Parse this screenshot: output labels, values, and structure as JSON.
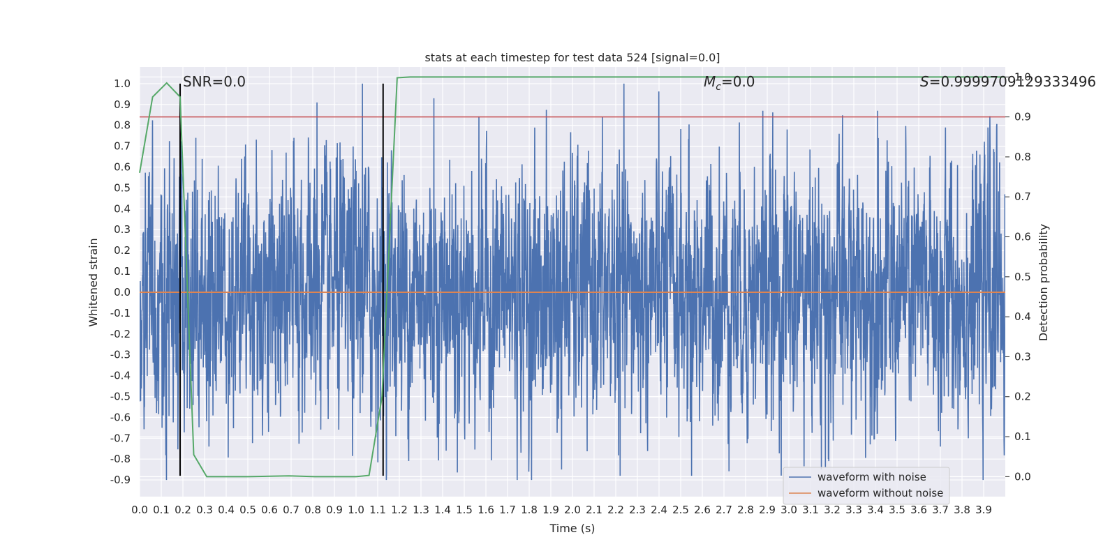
{
  "chart_data": {
    "type": "line",
    "title": "stats at each timestep for test data 524 [signal=0.0]",
    "xlabel": "Time (s)",
    "ylabel": "Whitened strain",
    "y2label": "Detection probability",
    "xlim": [
      0.0,
      4.0
    ],
    "ylim": [
      -0.98,
      1.08
    ],
    "y2lim": [
      -0.05,
      1.025
    ],
    "grid": true,
    "x_ticks": [
      "0.0",
      "0.1",
      "0.2",
      "0.3",
      "0.4",
      "0.5",
      "0.6",
      "0.7",
      "0.8",
      "0.9",
      "1.0",
      "1.1",
      "1.2",
      "1.3",
      "1.4",
      "1.5",
      "1.6",
      "1.7",
      "1.8",
      "1.9",
      "2.0",
      "2.1",
      "2.2",
      "2.3",
      "2.4",
      "2.5",
      "2.6",
      "2.7",
      "2.8",
      "2.9",
      "3.0",
      "3.1",
      "3.2",
      "3.3",
      "3.4",
      "3.5",
      "3.6",
      "3.7",
      "3.8",
      "3.9"
    ],
    "y_ticks": [
      "1.0",
      "0.9",
      "0.8",
      "0.7",
      "0.6",
      "0.5",
      "0.4",
      "0.3",
      "0.2",
      "0.1",
      "0.0",
      "-0.1",
      "-0.2",
      "-0.3",
      "-0.4",
      "-0.5",
      "-0.6",
      "-0.7",
      "-0.8",
      "-0.9"
    ],
    "y2_ticks": [
      "1.0",
      "0.9",
      "0.8",
      "0.7",
      "0.6",
      "0.5",
      "0.4",
      "0.3",
      "0.2",
      "0.1",
      "0.0"
    ],
    "annotations": {
      "snr": "SNR=0.0",
      "mc_symbol": "M",
      "mc_subscript": "c",
      "mc_value": "=0.0",
      "s_symbol": "S",
      "s_value": "=0.9999709129333496"
    },
    "legend": {
      "position": "lower-right",
      "entries": [
        "waveform with noise",
        "waveform without noise"
      ]
    },
    "colors": {
      "noise": "#4c72b0",
      "clean": "#dd8452",
      "probability": "#55a868",
      "threshold": "#c44e52",
      "markers": "#000000",
      "background": "#eaeaf2"
    },
    "noise_series": {
      "name": "waveform with noise",
      "description_stats": {
        "min": -0.9,
        "max": 1.0,
        "std": 0.3
      },
      "peaks": [
        [
          0.82,
          0.91
        ],
        [
          1.03,
          1.0
        ],
        [
          1.36,
          0.93
        ],
        [
          2.88,
          0.87
        ],
        [
          3.41,
          0.87
        ],
        [
          0.26,
          0.74
        ],
        [
          3.92,
          0.79
        ]
      ],
      "troughs": [
        [
          1.95,
          -0.85
        ],
        [
          2.22,
          -0.88
        ],
        [
          2.55,
          -0.88
        ],
        [
          3.15,
          -0.85
        ],
        [
          0.32,
          -0.74
        ],
        [
          3.7,
          -0.74
        ]
      ]
    },
    "clean_series": {
      "name": "waveform without noise",
      "x": [
        0.0,
        4.0
      ],
      "values": [
        0.0,
        0.0
      ]
    },
    "probability_series": {
      "name": "Detection probability",
      "x": [
        0.0,
        0.06,
        0.125,
        0.187,
        0.25,
        0.31,
        0.5,
        0.69,
        0.81,
        1.0,
        1.06,
        1.12,
        1.19,
        1.25,
        4.0
      ],
      "values": [
        0.76,
        0.95,
        0.985,
        0.95,
        0.055,
        0.0,
        0.0,
        0.002,
        0.0,
        0.0,
        0.003,
        0.2,
        0.998,
        1.0,
        1.0
      ]
    },
    "threshold": {
      "axis": "secondary",
      "value": 0.9
    },
    "vertical_markers": [
      0.187,
      1.125
    ],
    "vertical_marker_range": [
      -0.88,
      1.0
    ]
  }
}
